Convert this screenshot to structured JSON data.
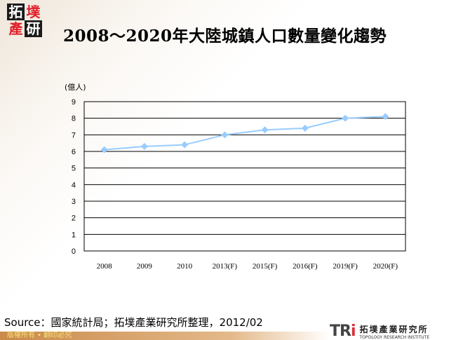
{
  "logo": {
    "chars": [
      "拓",
      "墣",
      "產",
      "研"
    ]
  },
  "header": {
    "title": "2008～2020年大陸城鎮人口數量變化趨勢"
  },
  "chart_data": {
    "type": "line",
    "title": "",
    "xlabel": "",
    "ylabel": "(億人)",
    "categories": [
      "2008",
      "2009",
      "2010",
      "2013(F)",
      "2015(F)",
      "2016(F)",
      "2019(F)",
      "2020(F)"
    ],
    "series": [
      {
        "values": [
          6.1,
          6.3,
          6.4,
          7.0,
          7.3,
          7.4,
          8.0,
          8.1
        ],
        "color": "#99ccff",
        "marker": "diamond"
      }
    ],
    "ylim": [
      0,
      9
    ],
    "yticks": [
      0,
      1,
      2,
      3,
      4,
      5,
      6,
      7,
      8,
      9
    ],
    "grid": true,
    "legend": "none"
  },
  "footer": {
    "source": "Source：國家統計局；拓墣產業研究所整理，2012/02",
    "copyright": "版權所有 • 翻印必究",
    "tri_mark": [
      "TR",
      "i"
    ],
    "tri_name_cn": "拓墣產業研究所",
    "tri_name_en": "TOPOLOGY RESEARCH INSTITUTE"
  }
}
